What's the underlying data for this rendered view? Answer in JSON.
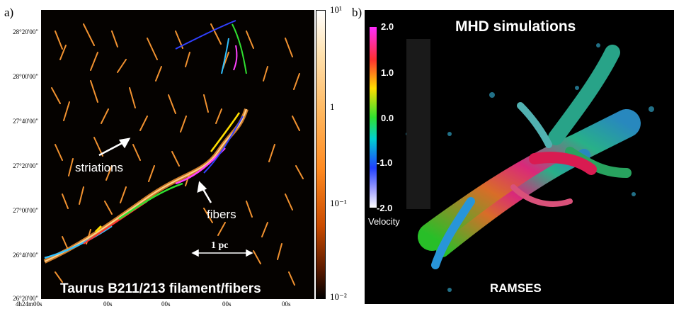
{
  "panel_a": {
    "label": "a)",
    "y_ticks": [
      "28°20'00\"",
      "28°00'00\"",
      "27°40'00\"",
      "27°20'00\"",
      "27°00'00\"",
      "26°40'00\"",
      "26°20'00\""
    ],
    "x_ticks": [
      "4h24m00s",
      "00s",
      "00s",
      "00s",
      "00s"
    ],
    "colorbar_ticks": [
      "10¹",
      "1",
      "10⁻¹",
      "10⁻²"
    ],
    "annotation_striations": "striations",
    "annotation_fibers": "fibers",
    "scale_bar": "1 pc",
    "caption": "Taurus B211/213 filament/fibers"
  },
  "panel_b": {
    "label": "b)",
    "title": "MHD simulations",
    "velocity_ticks": [
      "2.0",
      "1.0",
      "0.0",
      "-1.0",
      "-2.0"
    ],
    "velocity_label": "Velocity",
    "code_label": "RAMSES"
  },
  "colors": {
    "filament_orange": "#ff9a33",
    "background": "#000000"
  }
}
